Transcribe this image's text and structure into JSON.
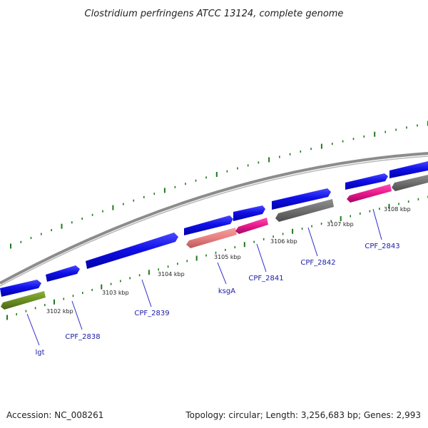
{
  "title": "Clostridium perfringens ATCC 13124, complete genome",
  "footer": {
    "accession": "Accession: NC_008261",
    "summary": "Topology: circular; Length: 3,256,683 bp; Genes: 2,993"
  },
  "colors": {
    "cds_forward": "#1010e8",
    "cds_reverse_gray": "#6e6e6e",
    "cds_reverse_pink": "#e8188c",
    "cds_reverse_salmon": "#e88080",
    "cds_reverse_olive": "#6b8e23",
    "backbone": "#8c8c8c",
    "ticks": "#1f7a1f",
    "label": "#1a1aa8"
  },
  "scale_labels": [
    "3102 kbp",
    "3103 kbp",
    "3104 kbp",
    "3105 kbp",
    "3106 kbp",
    "3107 kbp",
    "3108 kbp"
  ],
  "genes": [
    {
      "name": "lgt",
      "strand": "reverse",
      "color": "olive"
    },
    {
      "name": "CPF_2838",
      "strand": "forward",
      "color": "blue"
    },
    {
      "name": "CPF_2839",
      "strand": "forward",
      "color": "blue"
    },
    {
      "name": "ksgA",
      "strand": "reverse",
      "color": "salmon"
    },
    {
      "name": "CPF_2841",
      "strand": "reverse",
      "color": "pink"
    },
    {
      "name": "CPF_2842",
      "strand": "reverse",
      "color": "gray"
    },
    {
      "name": "CPF_2843",
      "strand": "reverse",
      "color": "pink"
    }
  ]
}
